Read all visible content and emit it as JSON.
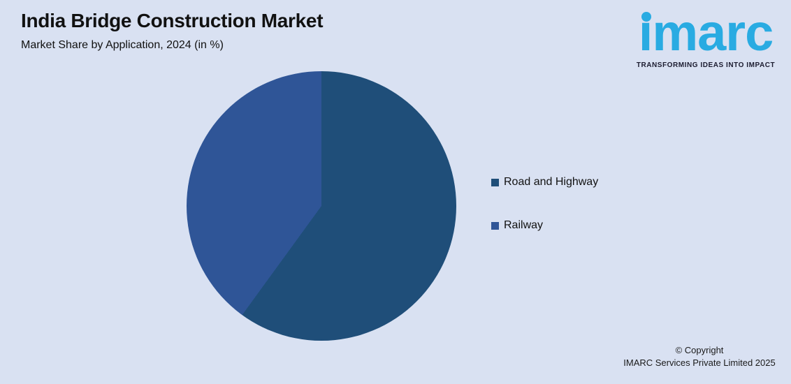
{
  "header": {
    "title": "India Bridge Construction Market",
    "subtitle": "Market Share by Application, 2024 (in %)"
  },
  "logo": {
    "text": "imarc",
    "tagline": "TRANSFORMING IDEAS INTO IMPACT",
    "brand_color": "#29ABE2"
  },
  "chart_data": {
    "type": "pie",
    "title": "India Bridge Construction Market",
    "subtitle": "Market Share by Application, 2024 (in %)",
    "units": "%",
    "start_angle_deg": 0,
    "direction": "clockwise",
    "legend_position": "right",
    "data_labels": false,
    "series": [
      {
        "name": "Road and Highway",
        "value": 60,
        "color": "#1F4E79"
      },
      {
        "name": "Railway",
        "value": 40,
        "color": "#2F5597"
      }
    ]
  },
  "footer": {
    "line1": "© Copyright",
    "line2": "IMARC Services Private Limited 2025"
  },
  "colors": {
    "background": "#D9E1F2"
  }
}
